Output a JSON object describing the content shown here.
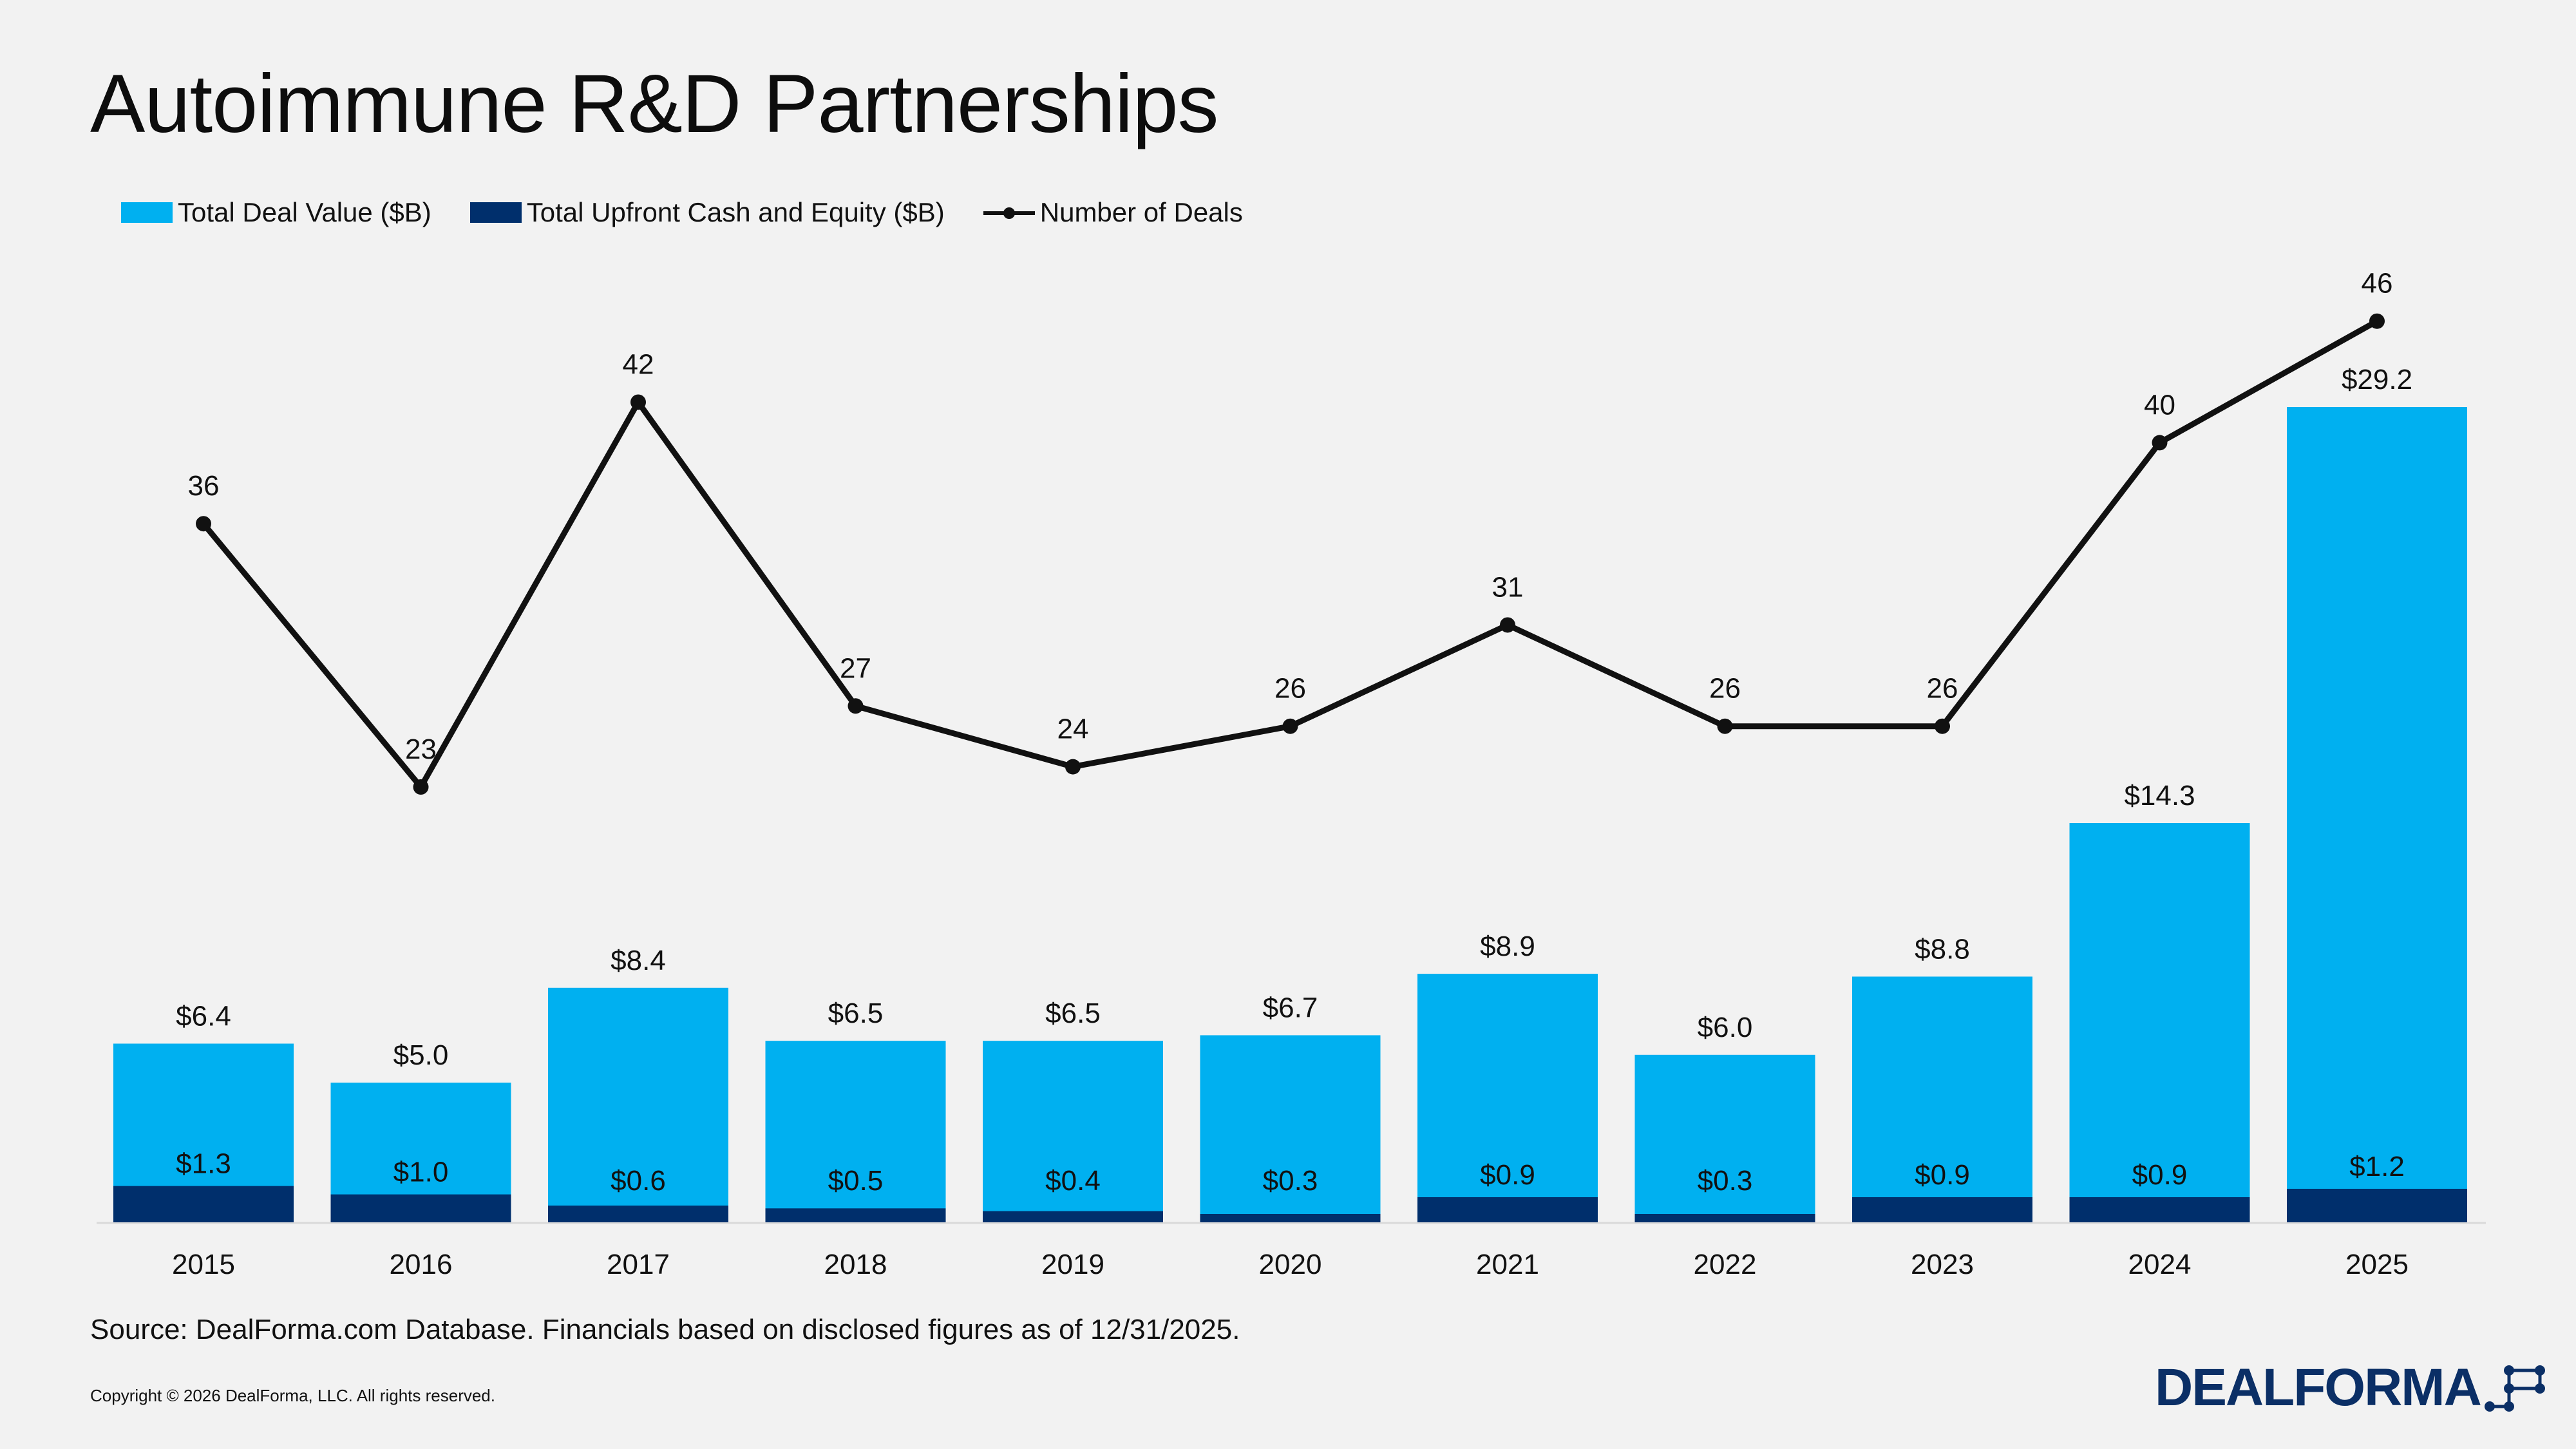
{
  "title": "Autoimmune R&D Partnerships",
  "legend": {
    "total_value": "Total Deal Value ($B)",
    "upfront": "Total Upfront Cash and Equity ($B)",
    "deals": "Number of Deals"
  },
  "colors": {
    "total_value": "#00b0f0",
    "upfront": "#002f6c",
    "deals_line": "#111111",
    "background": "#f2f2f2"
  },
  "chart_data": {
    "type": "bar",
    "categories": [
      "2015",
      "2016",
      "2017",
      "2018",
      "2019",
      "2020",
      "2021",
      "2022",
      "2023",
      "2024",
      "2025"
    ],
    "series": [
      {
        "name": "Total Deal Value ($B)",
        "values": [
          6.4,
          5.0,
          8.4,
          6.5,
          6.5,
          6.7,
          8.9,
          6.0,
          8.8,
          14.3,
          29.2
        ],
        "labels": [
          "$6.4",
          "$5.0",
          "$8.4",
          "$6.5",
          "$6.5",
          "$6.7",
          "$8.9",
          "$6.0",
          "$8.8",
          "$14.3",
          "$29.2"
        ]
      },
      {
        "name": "Total Upfront Cash and Equity ($B)",
        "values": [
          1.3,
          1.0,
          0.6,
          0.5,
          0.4,
          0.3,
          0.9,
          0.3,
          0.9,
          0.9,
          1.2
        ],
        "labels": [
          "$1.3",
          "$1.0",
          "$0.6",
          "$0.5",
          "$0.4",
          "$0.3",
          "$0.9",
          "$0.3",
          "$0.9",
          "$0.9",
          "$1.2"
        ]
      },
      {
        "name": "Number of Deals",
        "type": "line",
        "values": [
          36,
          23,
          42,
          27,
          24,
          26,
          31,
          26,
          26,
          40,
          46
        ],
        "labels": [
          "36",
          "23",
          "42",
          "27",
          "24",
          "26",
          "31",
          "26",
          "26",
          "40",
          "46"
        ]
      }
    ],
    "bar_ylim": [
      0,
      30
    ],
    "line_ylim": [
      0,
      60
    ],
    "legend_position": "top-left",
    "grid": false
  },
  "source": "Source: DealForma.com Database. Financials based on disclosed figures as of 12/31/2025.",
  "copyright": "Copyright © 2026 DealForma, LLC. All rights reserved.",
  "logo": {
    "text": "DEALFORMA",
    "icon": "network-dots-icon"
  }
}
